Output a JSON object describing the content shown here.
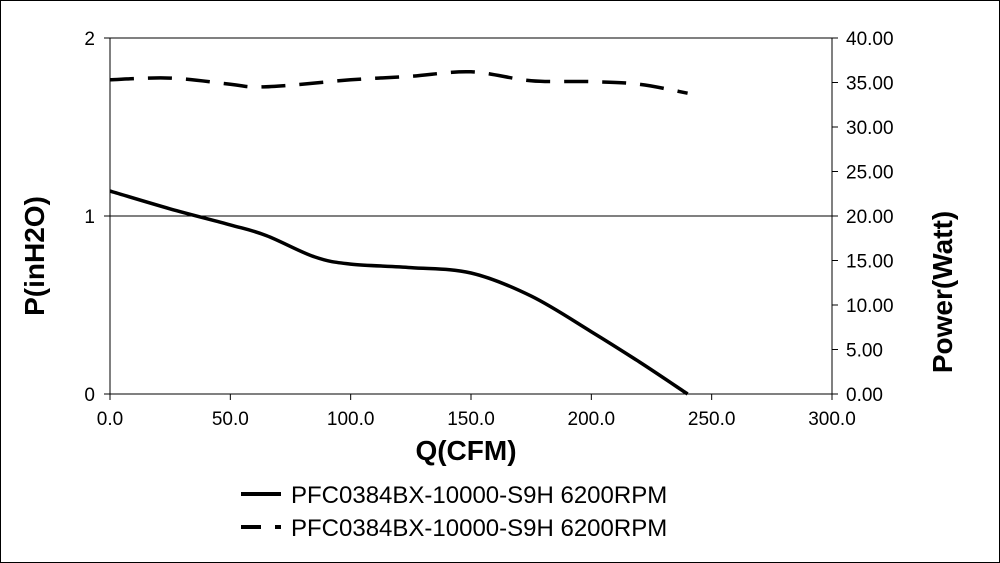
{
  "chart_data": {
    "type": "line",
    "xlabel": "Q(CFM)",
    "ylabel_left": "P(inH2O)",
    "ylabel_right": "Power(Watt)",
    "xlim": [
      0,
      300
    ],
    "ylim_left": [
      0,
      2
    ],
    "ylim_right": [
      0,
      40
    ],
    "x_ticks": [
      "0.0",
      "50.0",
      "100.0",
      "150.0",
      "200.0",
      "250.0",
      "300.0"
    ],
    "y_left_ticks": [
      "0",
      "1",
      "2"
    ],
    "y_right_ticks": [
      "0.00",
      "5.00",
      "10.00",
      "15.00",
      "20.00",
      "25.00",
      "30.00",
      "35.00",
      "40.00"
    ],
    "grid": "horizontal line at y=1",
    "legend_position": "bottom",
    "series": [
      {
        "name": "PFC0384BX-10000-S9H 6200RPM",
        "axis": "left",
        "style": "solid",
        "color": "#000000",
        "x": [
          0,
          25,
          50,
          65,
          85,
          100,
          125,
          150,
          175,
          200,
          220,
          240
        ],
        "y": [
          1.14,
          1.04,
          0.95,
          0.89,
          0.77,
          0.73,
          0.71,
          0.68,
          0.55,
          0.35,
          0.18,
          0.0
        ]
      },
      {
        "name": "PFC0384BX-10000-S9H 6200RPM",
        "axis": "right",
        "style": "dashed",
        "color": "#000000",
        "x": [
          0,
          25,
          50,
          60,
          75,
          100,
          125,
          150,
          175,
          200,
          220,
          240
        ],
        "y": [
          35.3,
          35.5,
          34.8,
          34.5,
          34.7,
          35.3,
          35.7,
          36.2,
          35.2,
          35.1,
          34.8,
          33.8
        ]
      }
    ]
  }
}
